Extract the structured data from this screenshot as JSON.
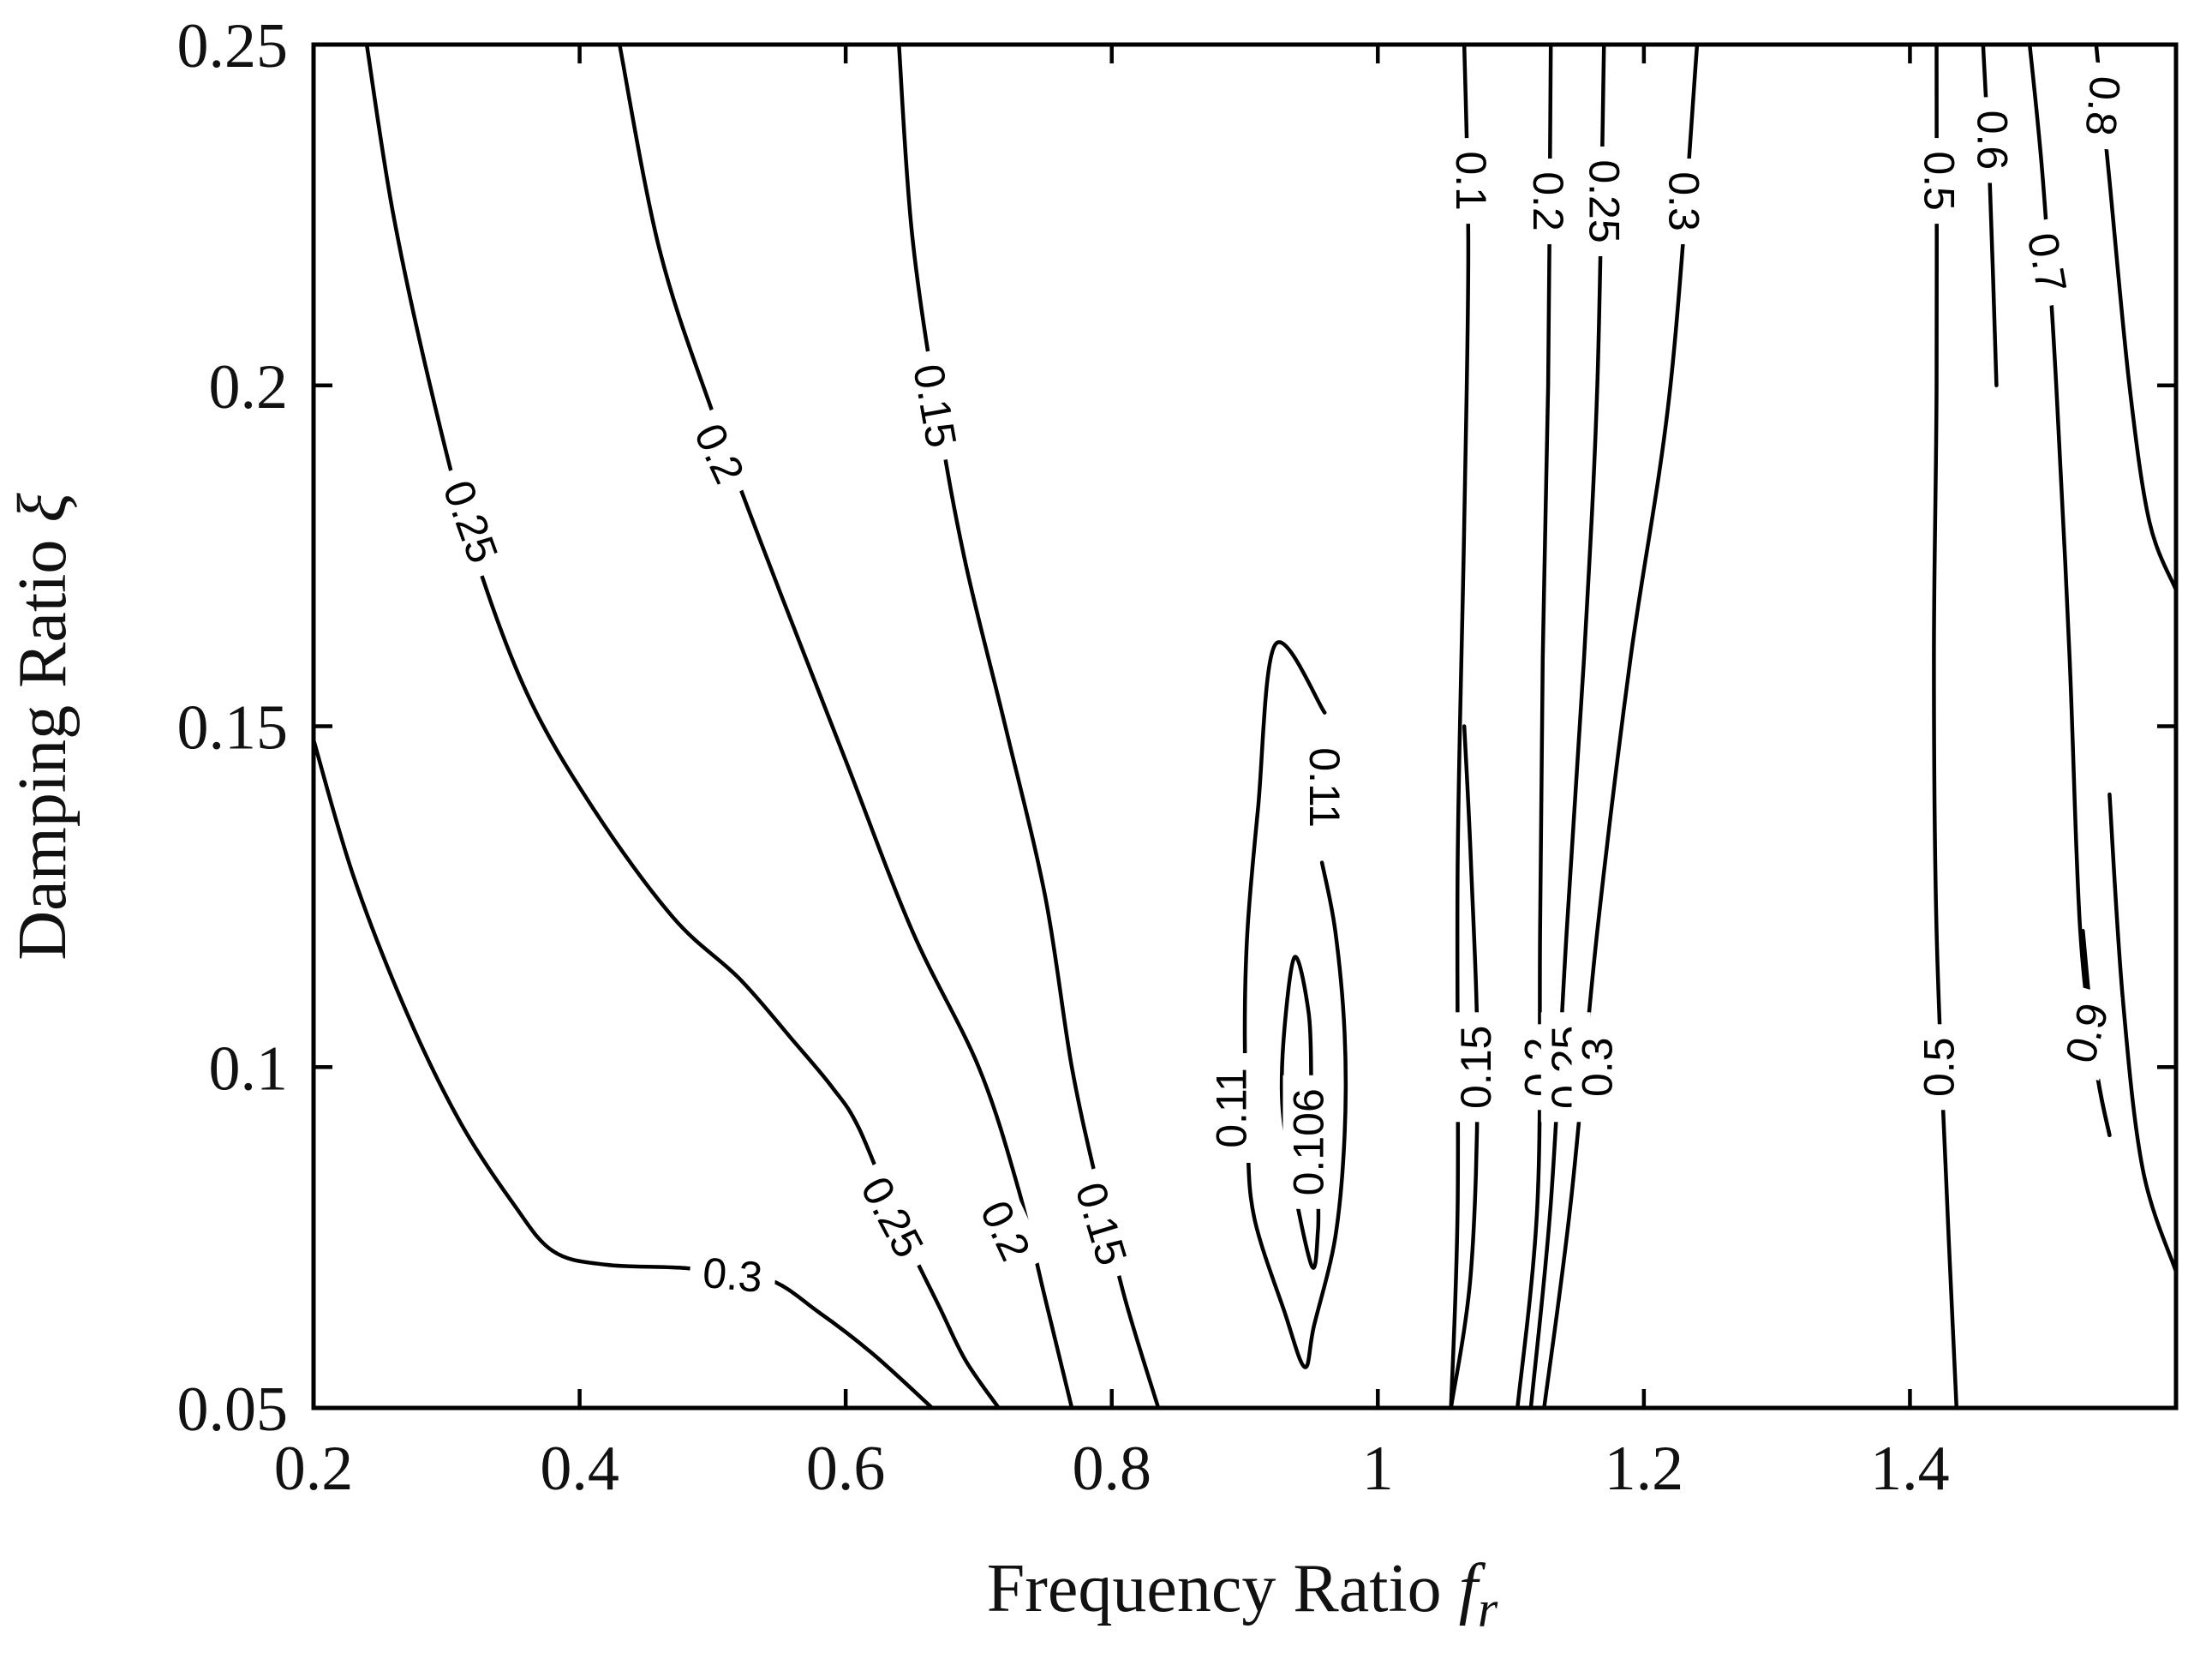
{
  "chart_data": {
    "type": "contour",
    "xlabel": "Frequency Ratio",
    "xlabel_symbol": "f",
    "xlabel_subscript": "r",
    "ylabel": "Damping Ratio",
    "ylabel_symbol": "ξ",
    "xlim": [
      0.2,
      1.6
    ],
    "ylim": [
      0.05,
      0.25
    ],
    "xticks": [
      0.2,
      0.4,
      0.6,
      0.8,
      1.0,
      1.2,
      1.4
    ],
    "xtick_labels": [
      "0.2",
      "0.4",
      "0.6",
      "0.8",
      "1",
      "1.2",
      "1.4"
    ],
    "yticks": [
      0.05,
      0.1,
      0.15,
      0.2,
      0.25
    ],
    "ytick_labels": [
      "0.05",
      "0.1",
      "0.15",
      "0.2",
      "0.25"
    ],
    "grid": false,
    "contours": [
      {
        "level": "0.3",
        "points": [
          [
            0.2,
            0.148
          ],
          [
            0.23,
            0.128
          ],
          [
            0.27,
            0.108
          ],
          [
            0.31,
            0.092
          ],
          [
            0.35,
            0.08
          ],
          [
            0.38,
            0.073
          ],
          [
            0.42,
            0.071
          ],
          [
            0.48,
            0.0705
          ],
          [
            0.54,
            0.069
          ],
          [
            0.58,
            0.064
          ],
          [
            0.62,
            0.058
          ],
          [
            0.665,
            0.05
          ]
        ],
        "labels": [
          {
            "text": "0.3",
            "x": 0.515,
            "y": 0.0695,
            "angle": 5
          }
        ]
      },
      {
        "level": "0.25",
        "points": [
          [
            0.24,
            0.25
          ],
          [
            0.26,
            0.225
          ],
          [
            0.29,
            0.198
          ],
          [
            0.32,
            0.176
          ],
          [
            0.36,
            0.155
          ],
          [
            0.41,
            0.138
          ],
          [
            0.47,
            0.122
          ],
          [
            0.52,
            0.113
          ],
          [
            0.56,
            0.104
          ],
          [
            0.59,
            0.097
          ],
          [
            0.61,
            0.091
          ],
          [
            0.64,
            0.077
          ],
          [
            0.67,
            0.065
          ],
          [
            0.69,
            0.057
          ],
          [
            0.715,
            0.05
          ]
        ],
        "labels": [
          {
            "text": "0.25",
            "x": 0.318,
            "y": 0.18,
            "angle": 70
          },
          {
            "text": "0.25",
            "x": 0.635,
            "y": 0.078,
            "angle": 62
          }
        ]
      },
      {
        "level": "0.2",
        "points": [
          [
            0.43,
            0.25
          ],
          [
            0.46,
            0.22
          ],
          [
            0.5,
            0.196
          ],
          [
            0.55,
            0.17
          ],
          [
            0.6,
            0.145
          ],
          [
            0.65,
            0.12
          ],
          [
            0.7,
            0.1
          ],
          [
            0.73,
            0.082
          ],
          [
            0.75,
            0.066
          ],
          [
            0.77,
            0.05
          ]
        ],
        "labels": [
          {
            "text": "0.2",
            "x": 0.505,
            "y": 0.19,
            "angle": 65
          },
          {
            "text": "0.2",
            "x": 0.72,
            "y": 0.076,
            "angle": 65
          }
        ]
      },
      {
        "level": "0.15",
        "points": [
          [
            0.64,
            0.25
          ],
          [
            0.65,
            0.222
          ],
          [
            0.67,
            0.195
          ],
          [
            0.69,
            0.174
          ],
          [
            0.72,
            0.15
          ],
          [
            0.75,
            0.125
          ],
          [
            0.77,
            0.1
          ],
          [
            0.79,
            0.082
          ],
          [
            0.81,
            0.066
          ],
          [
            0.835,
            0.05
          ]
        ],
        "labels": [
          {
            "text": "0.15",
            "x": 0.667,
            "y": 0.197,
            "angle": 80
          },
          {
            "text": "0.15",
            "x": 0.792,
            "y": 0.077,
            "angle": 73
          }
        ]
      },
      {
        "level": "0.11",
        "points": [
          [
            0.958,
            0.13
          ],
          [
            0.968,
            0.12
          ],
          [
            0.975,
            0.105
          ],
          [
            0.975,
            0.09
          ],
          [
            0.968,
            0.075
          ],
          [
            0.952,
            0.062
          ],
          [
            0.945,
            0.056
          ],
          [
            0.93,
            0.064
          ],
          [
            0.907,
            0.078
          ],
          [
            0.902,
            0.09
          ],
          [
            0.9,
            0.105
          ],
          [
            0.902,
            0.12
          ],
          [
            0.91,
            0.138
          ],
          [
            0.923,
            0.162
          ],
          [
            0.96,
            0.152
          ]
        ],
        "labels": [
          {
            "text": "0.11",
            "x": 0.96,
            "y": 0.141,
            "angle": 90
          },
          {
            "text": "0.11",
            "x": 0.89,
            "y": 0.094,
            "angle": -90
          }
        ]
      },
      {
        "level": "0.106",
        "points": [
          [
            0.955,
            0.082
          ],
          [
            0.955,
            0.076
          ],
          [
            0.95,
            0.071
          ],
          [
            0.932,
            0.088
          ],
          [
            0.928,
            0.1
          ],
          [
            0.937,
            0.116
          ],
          [
            0.948,
            0.108
          ],
          [
            0.95,
            0.098
          ]
        ],
        "labels": [
          {
            "text": "0.106",
            "x": 0.948,
            "y": 0.089,
            "angle": -90
          }
        ]
      },
      {
        "level": "0.1",
        "points": [
          [
            1.055,
            0.05
          ],
          [
            1.06,
            0.08
          ],
          [
            1.06,
            0.13
          ],
          [
            1.065,
            0.18
          ],
          [
            1.068,
            0.22
          ],
          [
            1.065,
            0.25
          ]
        ],
        "labels": [
          {
            "text": "0.1",
            "x": 1.07,
            "y": 0.23,
            "angle": 90
          }
        ]
      },
      {
        "level": "0.15",
        "points": [
          [
            1.055,
            0.05
          ],
          [
            1.07,
            0.07
          ],
          [
            1.075,
            0.1
          ],
          [
            1.07,
            0.13
          ],
          [
            1.065,
            0.15
          ]
        ],
        "labels": [
          {
            "text": "0.15",
            "x": 1.074,
            "y": 0.1,
            "angle": -90
          }
        ]
      },
      {
        "level": "0.2",
        "points": [
          [
            1.105,
            0.05
          ],
          [
            1.12,
            0.08
          ],
          [
            1.122,
            0.12
          ],
          [
            1.124,
            0.16
          ],
          [
            1.128,
            0.2
          ],
          [
            1.13,
            0.25
          ]
        ],
        "labels": [
          {
            "text": "0.2",
            "x": 1.128,
            "y": 0.227,
            "angle": 90
          },
          {
            "text": "0.2",
            "x": 1.122,
            "y": 0.1,
            "angle": -90
          }
        ]
      },
      {
        "level": "0.25",
        "points": [
          [
            1.115,
            0.05
          ],
          [
            1.13,
            0.08
          ],
          [
            1.142,
            0.12
          ],
          [
            1.155,
            0.16
          ],
          [
            1.165,
            0.2
          ],
          [
            1.17,
            0.25
          ]
        ],
        "labels": [
          {
            "text": "0.25",
            "x": 1.17,
            "y": 0.227,
            "angle": 90
          },
          {
            "text": "0.25",
            "x": 1.142,
            "y": 0.1,
            "angle": -90
          }
        ]
      },
      {
        "level": "0.3",
        "points": [
          [
            1.125,
            0.05
          ],
          [
            1.145,
            0.08
          ],
          [
            1.165,
            0.12
          ],
          [
            1.19,
            0.16
          ],
          [
            1.22,
            0.2
          ],
          [
            1.24,
            0.25
          ]
        ],
        "labels": [
          {
            "text": "0.3",
            "x": 1.23,
            "y": 0.227,
            "angle": 90
          },
          {
            "text": "0.3",
            "x": 1.165,
            "y": 0.1,
            "angle": -90
          }
        ]
      },
      {
        "level": "0.5",
        "points": [
          [
            1.435,
            0.05
          ],
          [
            1.428,
            0.08
          ],
          [
            1.42,
            0.12
          ],
          [
            1.418,
            0.16
          ],
          [
            1.42,
            0.2
          ],
          [
            1.42,
            0.25
          ]
        ],
        "labels": [
          {
            "text": "0.5",
            "x": 1.422,
            "y": 0.23,
            "angle": 90
          },
          {
            "text": "0.5",
            "x": 1.422,
            "y": 0.1,
            "angle": -90
          }
        ]
      },
      {
        "level": "0.6",
        "points": [
          [
            1.455,
            0.25
          ],
          [
            1.46,
            0.23
          ],
          [
            1.465,
            0.2
          ]
        ],
        "labels": [
          {
            "text": "0.6",
            "x": 1.462,
            "y": 0.236,
            "angle": 90
          }
        ]
      },
      {
        "level": "0.7",
        "points": [
          [
            1.49,
            0.25
          ],
          [
            1.5,
            0.23
          ],
          [
            1.51,
            0.2
          ],
          [
            1.52,
            0.16
          ],
          [
            1.528,
            0.12
          ],
          [
            1.54,
            0.1
          ],
          [
            1.55,
            0.09
          ]
        ],
        "labels": [
          {
            "text": "0.7",
            "x": 1.503,
            "y": 0.218,
            "angle": 80
          }
        ]
      },
      {
        "level": "0.9",
        "points": [
          [
            1.53,
            0.12
          ],
          [
            1.54,
            0.1
          ],
          [
            1.55,
            0.09
          ]
        ],
        "labels": [
          {
            "text": "0.9",
            "x": 1.533,
            "y": 0.105,
            "angle": -75
          }
        ]
      },
      {
        "level": "0.8",
        "points": [
          [
            1.54,
            0.25
          ],
          [
            1.55,
            0.23
          ],
          [
            1.565,
            0.2
          ],
          [
            1.58,
            0.18
          ],
          [
            1.6,
            0.17
          ]
        ],
        "labels": [
          {
            "text": "0.8",
            "x": 1.545,
            "y": 0.241,
            "angle": 95
          }
        ]
      },
      {
        "level": "",
        "points": [
          [
            1.55,
            0.14
          ],
          [
            1.56,
            0.11
          ],
          [
            1.575,
            0.085
          ],
          [
            1.6,
            0.07
          ]
        ],
        "labels": []
      }
    ]
  }
}
